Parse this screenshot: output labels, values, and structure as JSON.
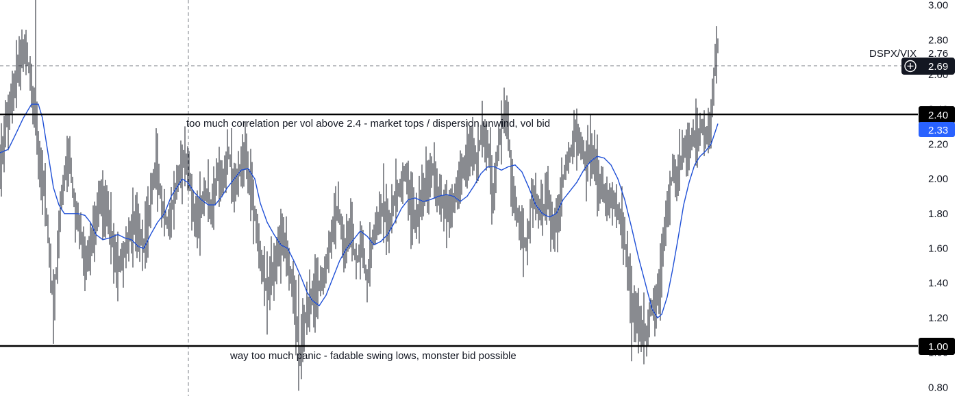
{
  "chart_data": {
    "type": "bar",
    "subtype": "ohlc",
    "symbol": "DSPX/VIX",
    "ylim": [
      0.75,
      3.03
    ],
    "y_scale": "linear",
    "grid": false,
    "ytick_values": [
      3.0,
      2.8,
      2.6,
      2.4,
      2.2,
      2.0,
      1.8,
      1.6,
      1.4,
      1.2,
      1.0,
      0.8
    ],
    "ytick_labels": [
      "3.00",
      "2.80",
      "2.60",
      "2.40",
      "2.20",
      "2.00",
      "1.80",
      "1.60",
      "1.40",
      "1.20",
      "1.00",
      "0.80"
    ],
    "levels": [
      {
        "value": 2.4,
        "label": "2.40",
        "annotation": "too much correlation per vol above 2.4 - market tops / dispersion unwind, vol bid"
      },
      {
        "value": 1.0,
        "label": "1.00",
        "annotation": "way too much panic - fadable swing lows, monster bid possible"
      }
    ],
    "last_price": {
      "value": 2.76,
      "label": "2.76"
    },
    "crosshair_price": {
      "value": 2.69,
      "label": "2.69"
    },
    "ma_last": {
      "value": 2.33,
      "label": "2.33",
      "color": "#2962ff"
    },
    "bar_color": "#131722",
    "ma_color": "#1e4fd6",
    "anchors": [
      [
        0,
        2.05
      ],
      [
        5,
        2.2
      ],
      [
        10,
        2.35
      ],
      [
        20,
        2.5
      ],
      [
        30,
        2.7
      ],
      [
        38,
        2.76
      ],
      [
        45,
        2.55
      ],
      [
        52,
        2.35
      ],
      [
        58,
        2.1
      ],
      [
        65,
        1.95
      ],
      [
        72,
        1.6
      ],
      [
        78,
        1.25
      ],
      [
        84,
        1.55
      ],
      [
        90,
        1.9
      ],
      [
        96,
        2.05
      ],
      [
        102,
        2.1
      ],
      [
        110,
        1.8
      ],
      [
        118,
        1.7
      ],
      [
        124,
        1.5
      ],
      [
        132,
        1.6
      ],
      [
        140,
        1.75
      ],
      [
        148,
        1.9
      ],
      [
        156,
        1.8
      ],
      [
        164,
        1.65
      ],
      [
        172,
        1.5
      ],
      [
        180,
        1.55
      ],
      [
        190,
        1.7
      ],
      [
        200,
        1.75
      ],
      [
        210,
        1.6
      ],
      [
        220,
        1.85
      ],
      [
        228,
        2.1
      ],
      [
        236,
        1.85
      ],
      [
        244,
        1.75
      ],
      [
        252,
        1.85
      ],
      [
        260,
        2.0
      ],
      [
        268,
        2.1
      ],
      [
        276,
        2.05
      ],
      [
        284,
        1.75
      ],
      [
        292,
        1.8
      ],
      [
        300,
        1.95
      ],
      [
        308,
        1.8
      ],
      [
        318,
        2.05
      ],
      [
        326,
        2.0
      ],
      [
        334,
        2.15
      ],
      [
        342,
        1.95
      ],
      [
        350,
        2.05
      ],
      [
        358,
        2.15
      ],
      [
        366,
        1.95
      ],
      [
        374,
        1.75
      ],
      [
        382,
        1.5
      ],
      [
        390,
        1.35
      ],
      [
        398,
        1.45
      ],
      [
        406,
        1.6
      ],
      [
        414,
        1.65
      ],
      [
        424,
        1.45
      ],
      [
        432,
        1.2
      ],
      [
        438,
        1.0
      ],
      [
        446,
        1.2
      ],
      [
        454,
        1.3
      ],
      [
        462,
        1.35
      ],
      [
        470,
        1.4
      ],
      [
        478,
        1.55
      ],
      [
        486,
        1.7
      ],
      [
        494,
        1.85
      ],
      [
        504,
        1.6
      ],
      [
        512,
        1.75
      ],
      [
        520,
        1.5
      ],
      [
        528,
        1.65
      ],
      [
        536,
        1.4
      ],
      [
        544,
        1.65
      ],
      [
        552,
        1.75
      ],
      [
        560,
        1.85
      ],
      [
        568,
        1.7
      ],
      [
        576,
        1.9
      ],
      [
        584,
        1.95
      ],
      [
        592,
        2.05
      ],
      [
        600,
        1.85
      ],
      [
        608,
        1.75
      ],
      [
        616,
        1.9
      ],
      [
        624,
        2.0
      ],
      [
        632,
        2.05
      ],
      [
        640,
        1.9
      ],
      [
        648,
        1.85
      ],
      [
        656,
        1.8
      ],
      [
        664,
        1.9
      ],
      [
        672,
        2.0
      ],
      [
        680,
        2.1
      ],
      [
        688,
        2.2
      ],
      [
        696,
        2.1
      ],
      [
        704,
        2.3
      ],
      [
        712,
        2.2
      ],
      [
        720,
        1.9
      ],
      [
        728,
        2.2
      ],
      [
        736,
        2.38
      ],
      [
        742,
        2.3
      ],
      [
        748,
        1.95
      ],
      [
        756,
        1.8
      ],
      [
        764,
        1.65
      ],
      [
        770,
        1.6
      ],
      [
        776,
        1.9
      ],
      [
        784,
        1.85
      ],
      [
        792,
        1.8
      ],
      [
        800,
        1.9
      ],
      [
        808,
        1.7
      ],
      [
        816,
        1.8
      ],
      [
        824,
        2.05
      ],
      [
        832,
        2.15
      ],
      [
        840,
        2.25
      ],
      [
        848,
        2.2
      ],
      [
        856,
        2.1
      ],
      [
        864,
        2.15
      ],
      [
        872,
        2.0
      ],
      [
        880,
        1.95
      ],
      [
        888,
        1.85
      ],
      [
        896,
        1.9
      ],
      [
        904,
        1.8
      ],
      [
        912,
        1.65
      ],
      [
        918,
        1.45
      ],
      [
        924,
        1.25
      ],
      [
        930,
        1.2
      ],
      [
        936,
        1.15
      ],
      [
        944,
        1.1
      ],
      [
        950,
        1.25
      ],
      [
        958,
        1.3
      ],
      [
        964,
        1.4
      ],
      [
        970,
        1.7
      ],
      [
        976,
        1.85
      ],
      [
        982,
        2.05
      ],
      [
        988,
        2.0
      ],
      [
        994,
        2.1
      ],
      [
        1000,
        2.2
      ],
      [
        1006,
        2.15
      ],
      [
        1012,
        2.25
      ],
      [
        1018,
        2.2
      ],
      [
        1024,
        2.3
      ],
      [
        1030,
        2.25
      ],
      [
        1036,
        2.3
      ],
      [
        1040,
        2.45
      ],
      [
        1043,
        2.6
      ],
      [
        1046,
        2.78
      ],
      [
        1049,
        2.76
      ]
    ],
    "ma_anchors": [
      [
        0,
        2.15
      ],
      [
        12,
        2.17
      ],
      [
        22,
        2.25
      ],
      [
        34,
        2.35
      ],
      [
        46,
        2.43
      ],
      [
        56,
        2.43
      ],
      [
        62,
        2.35
      ],
      [
        70,
        2.15
      ],
      [
        78,
        1.95
      ],
      [
        86,
        1.85
      ],
      [
        94,
        1.8
      ],
      [
        104,
        1.8
      ],
      [
        114,
        1.8
      ],
      [
        124,
        1.79
      ],
      [
        132,
        1.75
      ],
      [
        140,
        1.68
      ],
      [
        150,
        1.65
      ],
      [
        160,
        1.66
      ],
      [
        172,
        1.68
      ],
      [
        182,
        1.66
      ],
      [
        192,
        1.65
      ],
      [
        202,
        1.61
      ],
      [
        210,
        1.6
      ],
      [
        220,
        1.68
      ],
      [
        230,
        1.75
      ],
      [
        240,
        1.8
      ],
      [
        250,
        1.9
      ],
      [
        258,
        1.95
      ],
      [
        266,
        2.0
      ],
      [
        274,
        1.98
      ],
      [
        284,
        1.92
      ],
      [
        294,
        1.88
      ],
      [
        304,
        1.85
      ],
      [
        314,
        1.85
      ],
      [
        324,
        1.9
      ],
      [
        332,
        1.95
      ],
      [
        342,
        2.0
      ],
      [
        352,
        2.05
      ],
      [
        362,
        2.06
      ],
      [
        372,
        2.0
      ],
      [
        380,
        1.86
      ],
      [
        390,
        1.75
      ],
      [
        400,
        1.68
      ],
      [
        410,
        1.62
      ],
      [
        420,
        1.6
      ],
      [
        430,
        1.52
      ],
      [
        440,
        1.43
      ],
      [
        448,
        1.35
      ],
      [
        456,
        1.3
      ],
      [
        466,
        1.27
      ],
      [
        476,
        1.33
      ],
      [
        486,
        1.43
      ],
      [
        496,
        1.53
      ],
      [
        506,
        1.6
      ],
      [
        516,
        1.65
      ],
      [
        526,
        1.7
      ],
      [
        536,
        1.67
      ],
      [
        546,
        1.62
      ],
      [
        556,
        1.64
      ],
      [
        566,
        1.68
      ],
      [
        576,
        1.75
      ],
      [
        586,
        1.83
      ],
      [
        596,
        1.88
      ],
      [
        606,
        1.89
      ],
      [
        618,
        1.87
      ],
      [
        628,
        1.88
      ],
      [
        640,
        1.9
      ],
      [
        652,
        1.91
      ],
      [
        662,
        1.9
      ],
      [
        672,
        1.87
      ],
      [
        682,
        1.9
      ],
      [
        692,
        1.96
      ],
      [
        702,
        2.03
      ],
      [
        712,
        2.07
      ],
      [
        722,
        2.07
      ],
      [
        732,
        2.05
      ],
      [
        742,
        2.07
      ],
      [
        752,
        2.08
      ],
      [
        762,
        2.04
      ],
      [
        772,
        1.95
      ],
      [
        782,
        1.85
      ],
      [
        792,
        1.8
      ],
      [
        802,
        1.78
      ],
      [
        812,
        1.8
      ],
      [
        822,
        1.88
      ],
      [
        832,
        1.93
      ],
      [
        842,
        1.98
      ],
      [
        852,
        2.05
      ],
      [
        862,
        2.1
      ],
      [
        872,
        2.13
      ],
      [
        882,
        2.12
      ],
      [
        892,
        2.08
      ],
      [
        902,
        2.0
      ],
      [
        912,
        1.88
      ],
      [
        922,
        1.72
      ],
      [
        932,
        1.55
      ],
      [
        942,
        1.4
      ],
      [
        952,
        1.25
      ],
      [
        960,
        1.2
      ],
      [
        966,
        1.22
      ],
      [
        974,
        1.32
      ],
      [
        982,
        1.48
      ],
      [
        990,
        1.66
      ],
      [
        998,
        1.85
      ],
      [
        1006,
        1.98
      ],
      [
        1014,
        2.08
      ],
      [
        1022,
        2.13
      ],
      [
        1030,
        2.16
      ],
      [
        1038,
        2.2
      ],
      [
        1044,
        2.27
      ],
      [
        1049,
        2.33
      ]
    ]
  },
  "annotations": {
    "upper": "too much correlation per vol above 2.4 - market tops / dispersion unwind, vol bid",
    "lower": "way too much panic - fadable swing lows, monster bid possible"
  },
  "axis_tags": {
    "symbol": "DSPX/VIX",
    "last": "2.76",
    "crosshair": "2.69",
    "level_upper": "2.40",
    "ma": "2.33",
    "level_lower": "1.00"
  },
  "icons": {
    "crosshair_add": "plus-circle-icon"
  }
}
